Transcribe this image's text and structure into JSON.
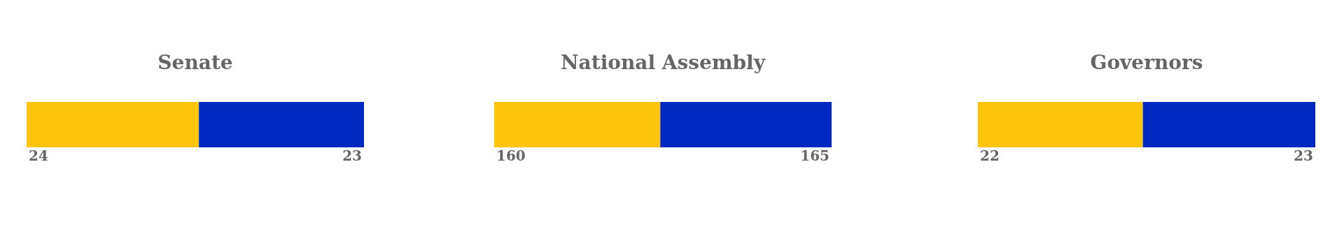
{
  "chart_data": [
    {
      "type": "bar",
      "title": "Senate",
      "orientation": "horizontal",
      "stacked": true,
      "data_labels": true,
      "categories": [
        null
      ],
      "series": [
        {
          "color": "#fcc50c",
          "values": [
            24
          ]
        },
        {
          "color": "#0029c1",
          "values": [
            23
          ]
        }
      ]
    },
    {
      "type": "bar",
      "title": "National Assembly",
      "orientation": "horizontal",
      "stacked": true,
      "data_labels": true,
      "categories": [
        null
      ],
      "series": [
        {
          "color": "#fcc50c",
          "values": [
            160
          ]
        },
        {
          "color": "#0029c1",
          "values": [
            165
          ]
        }
      ]
    },
    {
      "type": "bar",
      "title": "Governors",
      "orientation": "horizontal",
      "stacked": true,
      "data_labels": true,
      "categories": [
        null
      ],
      "series": [
        {
          "color": "#fcc50c",
          "values": [
            22
          ]
        },
        {
          "color": "#0029c1",
          "values": [
            23
          ]
        }
      ]
    }
  ]
}
